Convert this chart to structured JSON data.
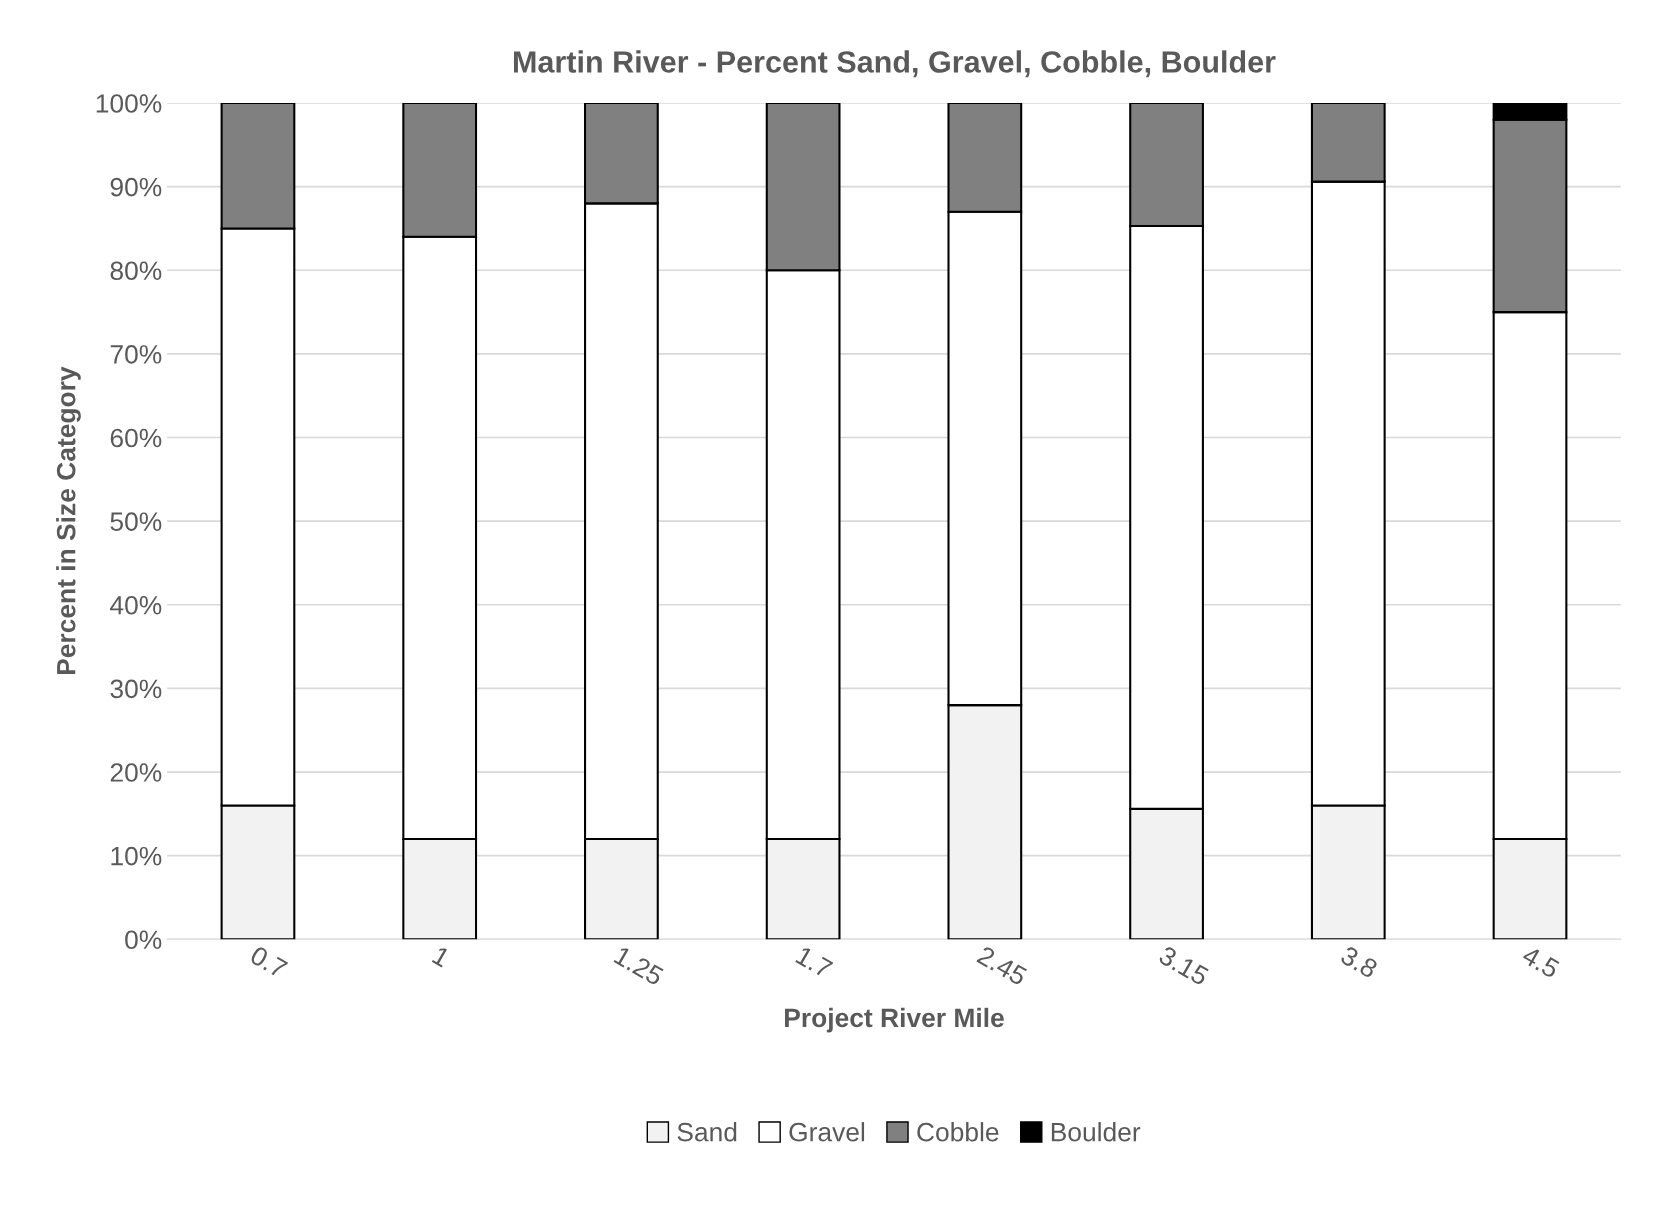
{
  "chart_data": {
    "type": "bar",
    "stacked": true,
    "title": "Martin River - Percent Sand, Gravel, Cobble, Boulder",
    "xlabel": "Project River Mile",
    "ylabel": "Percent in Size Category",
    "categories": [
      "0.7",
      "1",
      "1.25",
      "1.7",
      "2.45",
      "3.15",
      "3.8",
      "4.5"
    ],
    "series": [
      {
        "name": "Sand",
        "color": "#f2f2f2",
        "values": [
          16,
          12,
          12,
          12,
          28,
          15.6,
          16,
          12
        ]
      },
      {
        "name": "Gravel",
        "color": "#ffffff",
        "values": [
          69,
          72,
          76,
          68,
          59,
          69.7,
          74.6,
          63
        ]
      },
      {
        "name": "Cobble",
        "color": "#808080",
        "values": [
          15,
          16,
          12,
          20,
          13,
          14.7,
          9.4,
          23
        ]
      },
      {
        "name": "Boulder",
        "color": "#000000",
        "values": [
          0,
          0,
          0,
          0,
          0,
          0,
          0,
          2
        ]
      }
    ],
    "ylim": [
      0,
      100
    ],
    "yticks": [
      {
        "value": 0,
        "label": "0%"
      },
      {
        "value": 10,
        "label": "10%"
      },
      {
        "value": 20,
        "label": "20%"
      },
      {
        "value": 30,
        "label": "30%"
      },
      {
        "value": 40,
        "label": "40%"
      },
      {
        "value": 50,
        "label": "50%"
      },
      {
        "value": 60,
        "label": "60%"
      },
      {
        "value": 70,
        "label": "70%"
      },
      {
        "value": 80,
        "label": "80%"
      },
      {
        "value": 90,
        "label": "90%"
      },
      {
        "value": 100,
        "label": "100%"
      }
    ],
    "grid": "y",
    "legend": "bottom"
  }
}
